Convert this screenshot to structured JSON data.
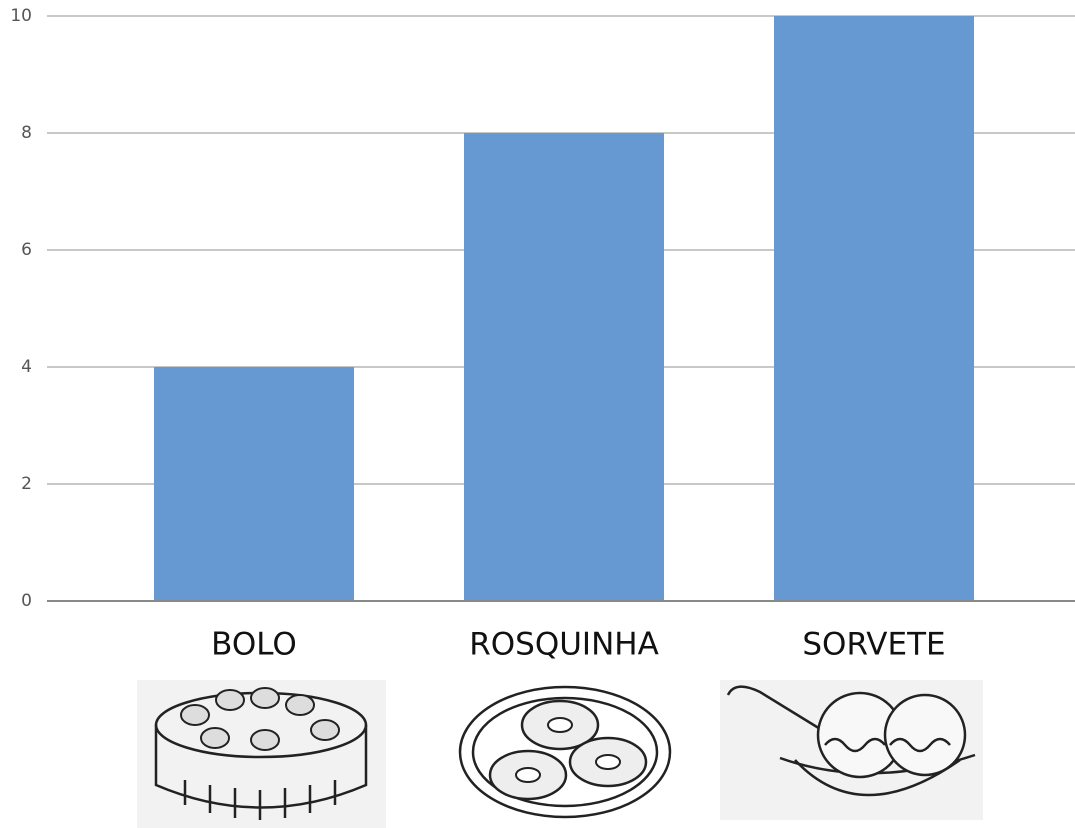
{
  "chart_data": {
    "type": "bar",
    "categories": [
      "BOLO",
      "ROSQUINHA",
      "SORVETE"
    ],
    "values": [
      4,
      8,
      10
    ],
    "color": "#6698d1",
    "ylim": [
      0,
      10
    ],
    "yticks": [
      0,
      2,
      4,
      6,
      8,
      10
    ],
    "grid": true
  }
}
